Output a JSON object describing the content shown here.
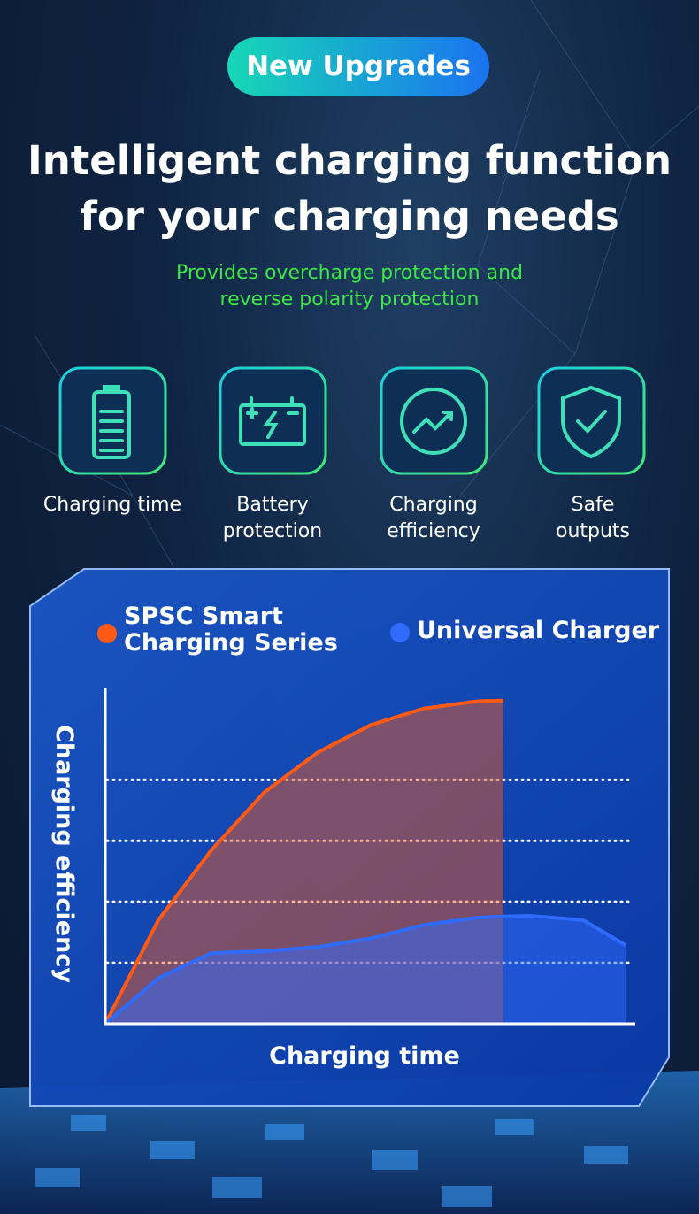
{
  "badge": "New Upgrades",
  "title": "Intelligent charging function for your charging needs",
  "subtitle": "Provides overcharge protection and reverse polarity protection",
  "features": [
    "Charging time",
    "Battery protection",
    "Charging efficiency",
    "Safe outputs"
  ],
  "chart_data": {
    "type": "area",
    "x_label": "Charging time",
    "y_label": "Charging efficiency",
    "x": [
      0,
      1,
      2,
      3,
      4,
      5,
      6,
      7,
      7.5,
      8,
      9,
      9.8
    ],
    "xlim": [
      0,
      10
    ],
    "ylim": [
      0,
      5.5
    ],
    "yticks": [
      1,
      2,
      3,
      4
    ],
    "grid": true,
    "series": [
      {
        "name": "SPSC Smart Charging Series",
        "color": "#ff5a14",
        "values": [
          0,
          1.7,
          2.85,
          3.8,
          4.45,
          4.9,
          5.17,
          5.29,
          5.3,
          null,
          null,
          null
        ]
      },
      {
        "name": "Universal Charger",
        "color": "#2f6bff",
        "values": [
          0,
          0.75,
          1.16,
          1.19,
          1.26,
          1.4,
          1.62,
          1.74,
          1.76,
          1.77,
          1.7,
          1.29
        ]
      }
    ]
  }
}
